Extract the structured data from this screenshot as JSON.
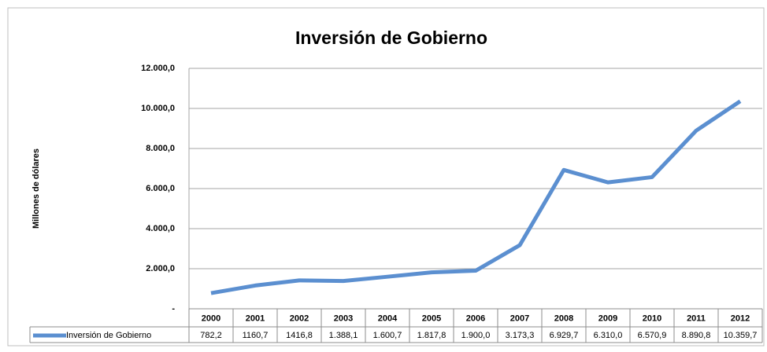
{
  "chart_data": {
    "type": "line",
    "title": "Inversión de Gobierno",
    "y_axis_label": "Millones de dólares",
    "categories": [
      "2000",
      "2001",
      "2002",
      "2003",
      "2004",
      "2005",
      "2006",
      "2007",
      "2008",
      "2009",
      "2010",
      "2011",
      "2012"
    ],
    "series": [
      {
        "name": "Inversión de Gobierno",
        "color": "#5b8fd0",
        "values": [
          782.2,
          1160.7,
          1416.8,
          1388.1,
          1600.7,
          1817.8,
          1900.0,
          3173.3,
          6929.7,
          6310.0,
          6570.9,
          8890.8,
          10359.7
        ],
        "value_labels": [
          "782,2",
          "1160,7",
          "1416,8",
          "1.388,1",
          "1.600,7",
          "1.817,8",
          "1.900,0",
          "3.173,3",
          "6.929,7",
          "6.310,0",
          "6.570,9",
          "8.890,8",
          "10.359,7"
        ]
      }
    ],
    "ylim": [
      0,
      12000
    ],
    "yticks": [
      {
        "value": 0,
        "label": "-"
      },
      {
        "value": 2000,
        "label": "2.000,0"
      },
      {
        "value": 4000,
        "label": "4.000,0"
      },
      {
        "value": 6000,
        "label": "6.000,0"
      },
      {
        "value": 8000,
        "label": "8.000,0"
      },
      {
        "value": 10000,
        "label": "10.000,0"
      },
      {
        "value": 12000,
        "label": "12.000,0"
      }
    ],
    "grid": true
  }
}
